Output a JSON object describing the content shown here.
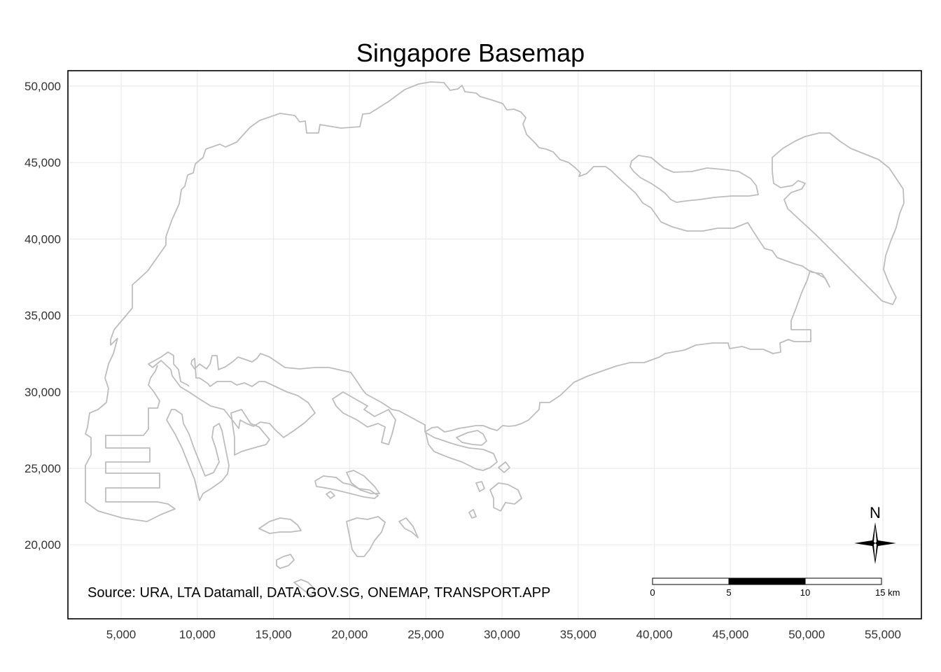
{
  "map": {
    "title": "Singapore Basemap",
    "source": "Source: URA, LTA Datamall, DATA.GOV.SG, ONEMAP, TRANSPORT.APP",
    "north_label": "N",
    "scale_bar": {
      "labels": [
        "0",
        "5",
        "10",
        "15 km"
      ],
      "length_km": 15,
      "segments": [
        "white",
        "white",
        "black",
        "white"
      ]
    },
    "x_axis": {
      "ticks": [
        "5,000",
        "10,000",
        "15,000",
        "20,000",
        "25,000",
        "30,000",
        "35,000",
        "40,000",
        "45,000",
        "50,000",
        "55,000"
      ]
    },
    "y_axis": {
      "ticks": [
        "50,000",
        "45,000",
        "40,000",
        "35,000",
        "30,000",
        "25,000",
        "20,000"
      ]
    },
    "grid": true,
    "colors": {
      "background": "#ffffff",
      "outline": "#bdbdbd",
      "grid": "#ebebeb",
      "panel_border": "#000000",
      "scale_fill": "#000000"
    }
  }
}
